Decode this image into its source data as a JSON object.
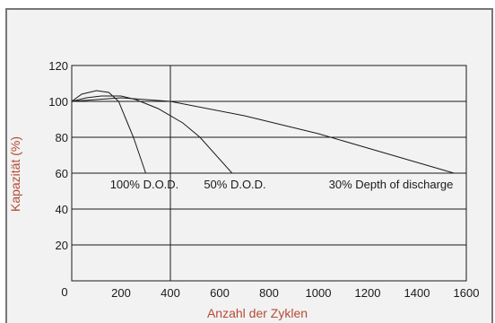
{
  "colors": {
    "background": "#ffffff",
    "panel": "#f2f2f2",
    "panel_border": "#777777",
    "axis_title": "#b54a35",
    "ink": "#1a1a1a"
  },
  "chart_data": {
    "type": "line",
    "title": "",
    "xlabel": "Anzahl der Zyklen",
    "ylabel": "Kapazität (%)",
    "xlim": [
      0,
      1600
    ],
    "ylim": [
      0,
      120
    ],
    "grid": true,
    "x_ticks": [
      "0",
      "200",
      "400",
      "600",
      "800",
      "1000",
      "1200",
      "1400",
      "1600"
    ],
    "y_ticks": [
      "120",
      "100",
      "80",
      "60",
      "40",
      "20"
    ],
    "series": [
      {
        "name": "100% D.O.D.",
        "x": [
          0,
          40,
          100,
          150,
          190,
          220,
          250,
          300
        ],
        "y": [
          100,
          104,
          106,
          105,
          100,
          90,
          80,
          60
        ]
      },
      {
        "name": "50% D.O.D.",
        "x": [
          0,
          60,
          120,
          200,
          260,
          350,
          450,
          520,
          650
        ],
        "y": [
          100,
          102,
          103,
          103,
          101,
          96,
          88,
          80,
          60
        ]
      },
      {
        "name": "30% Depth of discharge",
        "x": [
          0,
          100,
          200,
          400,
          700,
          1000,
          1200,
          1400,
          1550
        ],
        "y": [
          100,
          101,
          102,
          100,
          92,
          82,
          74,
          66,
          60
        ]
      }
    ]
  }
}
